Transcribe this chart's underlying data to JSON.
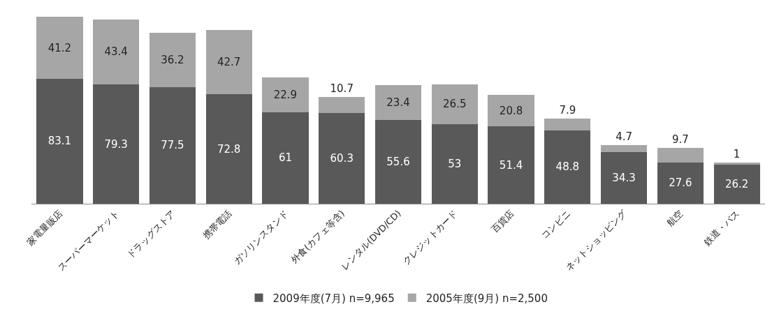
{
  "chart_data": {
    "type": "bar",
    "stacked": true,
    "data_labels": true,
    "legend": "bottom",
    "categories": [
      "家電量販店",
      "スーパーマーケット",
      "ドラッグストア",
      "携帯電話",
      "ガソリンスタンド",
      "外食(カフェ等含)",
      "レンタル(DVD/CD)",
      "クレジットカード",
      "百貨店",
      "コンビニ",
      "ネットショッピング",
      "航空",
      "鉄道・バス"
    ],
    "series": [
      {
        "name": "2009年度(7月) n=9,965",
        "color": "#595959",
        "values": [
          83.1,
          79.3,
          77.5,
          72.8,
          61,
          60.3,
          55.6,
          53,
          51.4,
          48.8,
          34.3,
          27.6,
          26.2
        ]
      },
      {
        "name": "2005年度(9月) n=2,500",
        "color": "#a6a6a6",
        "values": [
          41.2,
          43.4,
          36.2,
          42.7,
          22.9,
          10.7,
          23.4,
          26.5,
          20.8,
          7.9,
          4.7,
          9.7,
          1
        ]
      }
    ]
  }
}
